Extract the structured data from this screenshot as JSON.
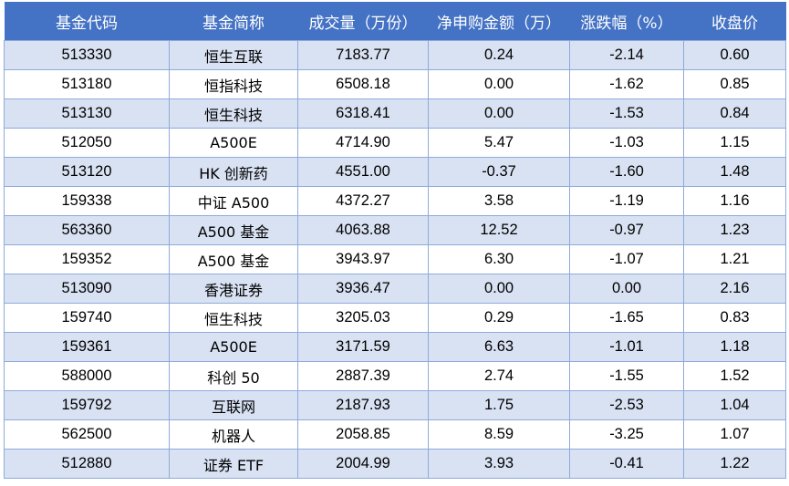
{
  "table": {
    "headers": [
      "基金代码",
      "基金简称",
      "成交量（万份）",
      "净申购金额（万）",
      "涨跌幅（%）",
      "收盘价"
    ],
    "rows": [
      [
        "513330",
        "恒生互联",
        "7183.77",
        "0.24",
        "-2.14",
        "0.60"
      ],
      [
        "513180",
        "恒指科技",
        "6508.18",
        "0.00",
        "-1.62",
        "0.85"
      ],
      [
        "513130",
        "恒生科技",
        "6318.41",
        "0.00",
        "-1.53",
        "0.84"
      ],
      [
        "512050",
        "A500E",
        "4714.90",
        "5.47",
        "-1.03",
        "1.15"
      ],
      [
        "513120",
        "HK 创新药",
        "4551.00",
        "-0.37",
        "-1.60",
        "1.48"
      ],
      [
        "159338",
        "中证 A500",
        "4372.27",
        "3.58",
        "-1.19",
        "1.16"
      ],
      [
        "563360",
        "A500 基金",
        "4063.88",
        "12.52",
        "-0.97",
        "1.23"
      ],
      [
        "159352",
        "A500 基金",
        "3943.97",
        "6.30",
        "-1.07",
        "1.21"
      ],
      [
        "513090",
        "香港证券",
        "3936.47",
        "0.00",
        "0.00",
        "2.16"
      ],
      [
        "159740",
        "恒生科技",
        "3205.03",
        "0.29",
        "-1.65",
        "0.83"
      ],
      [
        "159361",
        "A500E",
        "3171.59",
        "6.63",
        "-1.01",
        "1.18"
      ],
      [
        "588000",
        "科创 50",
        "2887.39",
        "2.74",
        "-1.55",
        "1.52"
      ],
      [
        "159792",
        "互联网",
        "2187.93",
        "1.75",
        "-2.53",
        "1.04"
      ],
      [
        "562500",
        "机器人",
        "2058.85",
        "8.59",
        "-3.25",
        "1.07"
      ],
      [
        "512880",
        "证券 ETF",
        "2004.99",
        "3.93",
        "-0.41",
        "1.22"
      ]
    ]
  },
  "colors": {
    "header_bg": "#4472c4",
    "header_text": "#ffffff",
    "band_row": "#d9e2f3",
    "plain_row": "#ffffff",
    "grid_line": "#8eaadb"
  }
}
